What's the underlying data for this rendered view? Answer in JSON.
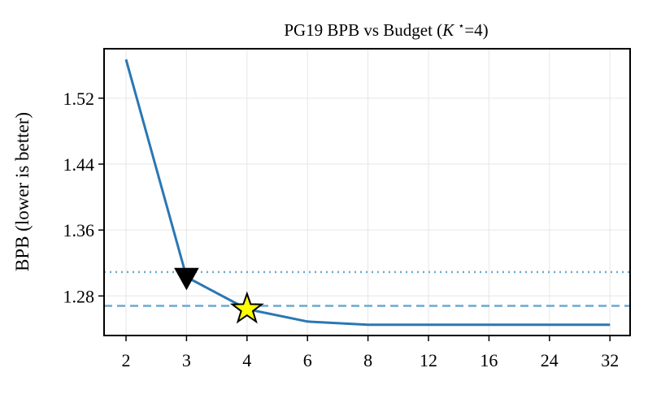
{
  "chart_data": {
    "type": "line",
    "title_main": "PG19 BPB vs Budget (",
    "title_k": "K",
    "title_star": "⋆",
    "title_rest": "=4)",
    "ylabel": "BPB (lower is better)",
    "xlabel": "",
    "categories": [
      "2",
      "3",
      "4",
      "6",
      "8",
      "12",
      "16",
      "24",
      "32"
    ],
    "series": [
      {
        "values": [
          1.567,
          1.303,
          1.264,
          1.249,
          1.245,
          1.245,
          1.245,
          1.245,
          1.245
        ],
        "color": "#2a77b4"
      }
    ],
    "yticks": [
      1.28,
      1.36,
      1.44,
      1.52
    ],
    "ytick_labels": [
      "1.28",
      "1.36",
      "1.44",
      "1.52"
    ],
    "ylim": [
      1.232,
      1.58
    ],
    "reference_lines": [
      {
        "style": "dotted",
        "y": 1.309,
        "color": "#6aaad0"
      },
      {
        "style": "dashed",
        "y": 1.268,
        "color": "#6aaad0"
      }
    ],
    "markers": [
      {
        "shape": "triangle-down",
        "category": "3",
        "y": 1.303,
        "color": "#000000"
      },
      {
        "shape": "star",
        "category": "4",
        "y": 1.264,
        "color": "#ffff00"
      }
    ],
    "grid": true
  }
}
